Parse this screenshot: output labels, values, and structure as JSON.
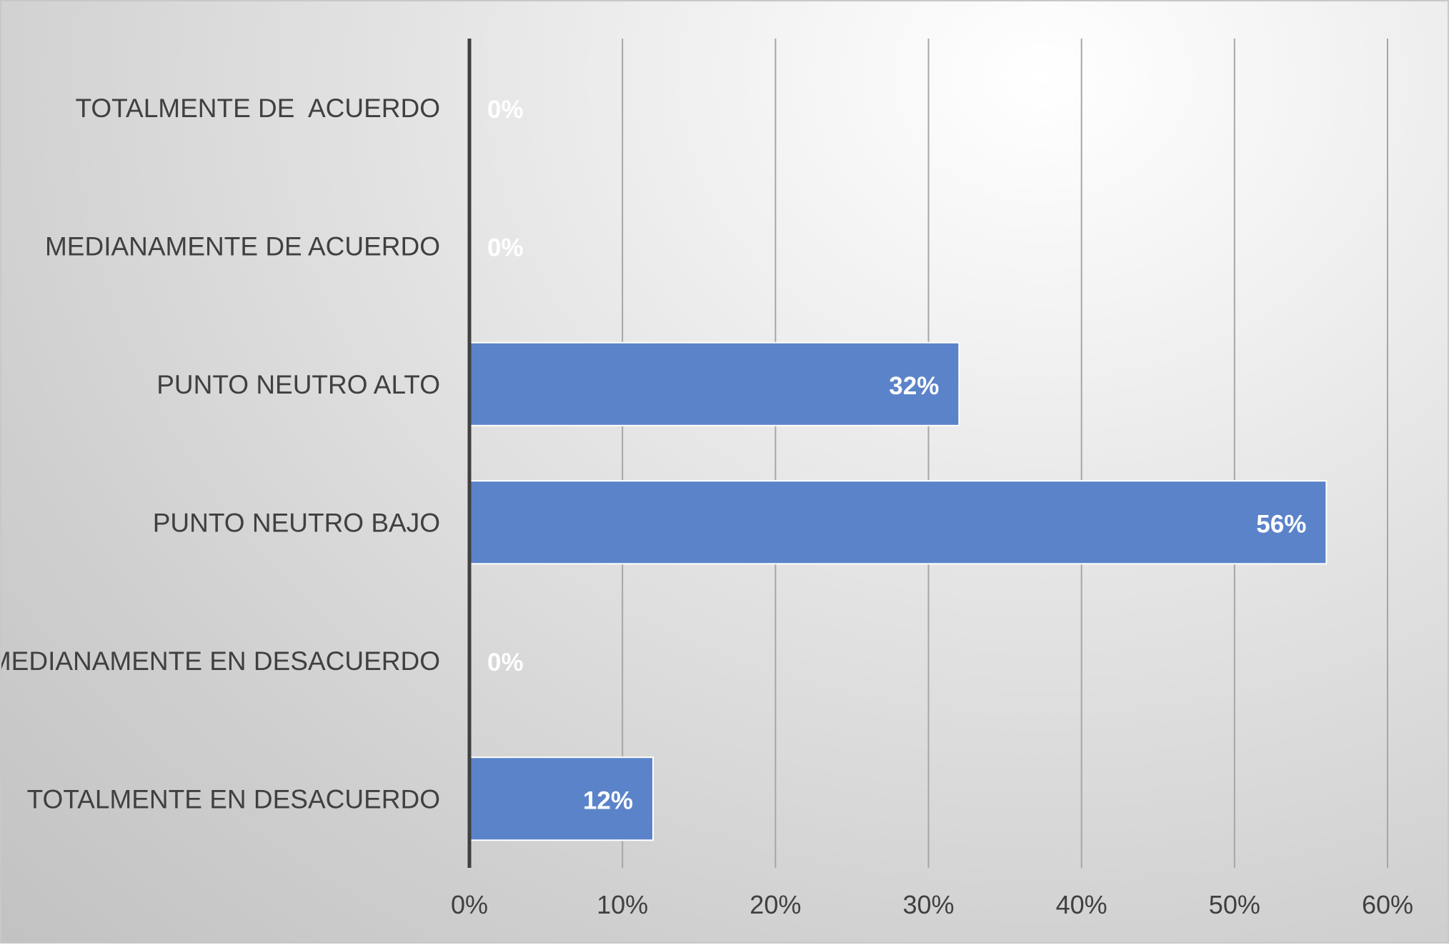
{
  "chart_data": {
    "type": "bar",
    "orientation": "horizontal",
    "categories": [
      "TOTALMENTE DE  ACUERDO",
      "MEDIANAMENTE DE ACUERDO",
      "PUNTO NEUTRO ALTO",
      "PUNTO NEUTRO BAJO",
      "MEDIANAMENTE EN DESACUERDO",
      "TOTALMENTE EN DESACUERDO"
    ],
    "values": [
      0,
      0,
      32,
      56,
      0,
      12
    ],
    "data_labels": [
      "0%",
      "0%",
      "32%",
      "56%",
      "0%",
      "12%"
    ],
    "xlim": [
      0,
      60
    ],
    "x_ticks": [
      "0%",
      "10%",
      "20%",
      "30%",
      "40%",
      "50%",
      "60%"
    ],
    "title": "",
    "xlabel": "",
    "ylabel": "",
    "grid": "vertical",
    "legend": "none",
    "colors": {
      "bar": "#5b83c9",
      "bar_border": "#ffffff",
      "gridline": "#a6a6a6",
      "axis": "#404040",
      "text": "#404040",
      "data_label": "#ffffff"
    }
  }
}
